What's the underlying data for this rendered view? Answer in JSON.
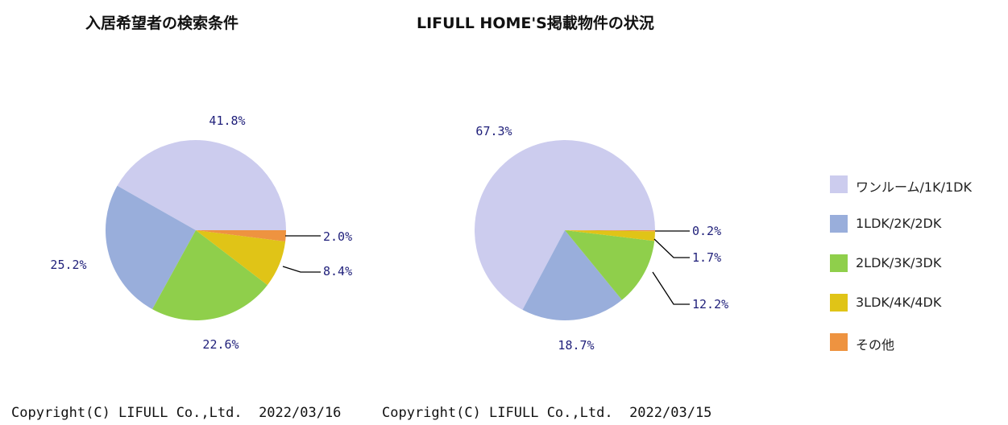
{
  "colors": {
    "one_room_1k_1dk": "#ccccee",
    "ldk_1_2k_2dk": "#99aedb",
    "ldk_2_3k_3dk": "#8fcf4b",
    "ldk_3_4k_4dk": "#e0c417",
    "other": "#ee9340",
    "label": "#1f1f7a",
    "leader": "#000000"
  },
  "legend": [
    {
      "label": "ワンルーム/1K/1DK",
      "color": "#ccccee"
    },
    {
      "label": "1LDK/2K/2DK",
      "color": "#99aedb"
    },
    {
      "label": "2LDK/3K/3DK",
      "color": "#8fcf4b"
    },
    {
      "label": "3LDK/4K/4DK",
      "color": "#e0c417"
    },
    {
      "label": "その他",
      "color": "#ee9340"
    }
  ],
  "chart_data": [
    {
      "type": "pie",
      "title": "入居希望者の検索条件",
      "categories": [
        "ワンルーム/1K/1DK",
        "1LDK/2K/2DK",
        "2LDK/3K/3DK",
        "3LDK/4K/4DK",
        "その他"
      ],
      "values": [
        41.8,
        25.2,
        22.6,
        8.4,
        2.0
      ],
      "labels": [
        "41.8%",
        "25.2%",
        "22.6%",
        "8.4%",
        "2.0%"
      ],
      "legend_position": "right",
      "copyright": "Copyright(C) LIFULL Co.,Ltd.",
      "date": "2022/03/16"
    },
    {
      "type": "pie",
      "title": "LIFULL HOME'S掲載物件の状況",
      "categories": [
        "ワンルーム/1K/1DK",
        "1LDK/2K/2DK",
        "2LDK/3K/3DK",
        "3LDK/4K/4DK",
        "その他"
      ],
      "values": [
        67.3,
        18.7,
        12.2,
        1.7,
        0.2
      ],
      "labels": [
        "67.3%",
        "18.7%",
        "12.2%",
        "1.7%",
        "0.2%"
      ],
      "legend_position": "right",
      "copyright": "Copyright(C) LIFULL Co.,Ltd.",
      "date": "2022/03/15"
    }
  ]
}
